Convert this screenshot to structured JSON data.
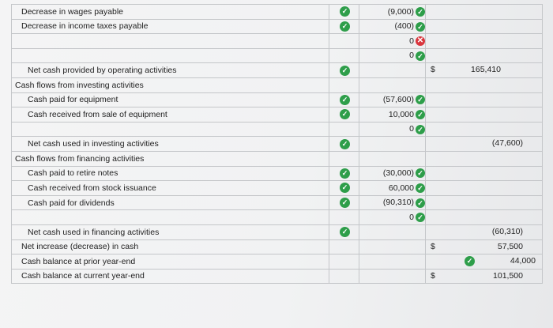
{
  "rows": [
    {
      "label": "Decrease in wages payable",
      "amount": "(9,000)",
      "status": "ok"
    },
    {
      "label": "Decrease in income taxes payable",
      "amount": "(400)",
      "status": "ok"
    },
    {
      "amount": "0",
      "status": "error"
    },
    {
      "amount": "0",
      "status": "ok"
    },
    {
      "label": "Net cash provided by operating activities",
      "currency": "$",
      "total": "165,410"
    },
    {
      "label": "Cash flows from investing activities"
    },
    {
      "label": "Cash paid for equipment",
      "amount": "(57,600)",
      "status": "ok"
    },
    {
      "label": "Cash received from sale of equipment",
      "amount": "10,000",
      "status": "ok"
    },
    {
      "amount": "0",
      "status": "ok"
    },
    {
      "label": "Net cash used in investing activities",
      "total": "(47,600)"
    },
    {
      "label": "Cash flows from financing activities"
    },
    {
      "label": "Cash paid to retire notes",
      "amount": "(30,000)",
      "status": "ok"
    },
    {
      "label": "Cash received from stock issuance",
      "amount": "60,000",
      "status": "ok"
    },
    {
      "label": "Cash paid for dividends",
      "amount": "(90,310)",
      "status": "ok"
    },
    {
      "amount": "0",
      "status": "ok"
    },
    {
      "label": "Net cash used in financing activities",
      "total": "(60,310)"
    },
    {
      "label": "Net increase (decrease) in cash",
      "currency": "$",
      "total": "57,500"
    },
    {
      "label": "Cash balance at prior year-end",
      "total": "44,000",
      "status": "ok"
    },
    {
      "label": "Cash balance at current year-end",
      "currency": "$",
      "total": "101,500"
    }
  ],
  "icons": {
    "ok": "check-circle-icon",
    "error": "x-circle-icon"
  },
  "colors": {
    "ok": "#2e9e4a",
    "error": "#d9363e"
  }
}
